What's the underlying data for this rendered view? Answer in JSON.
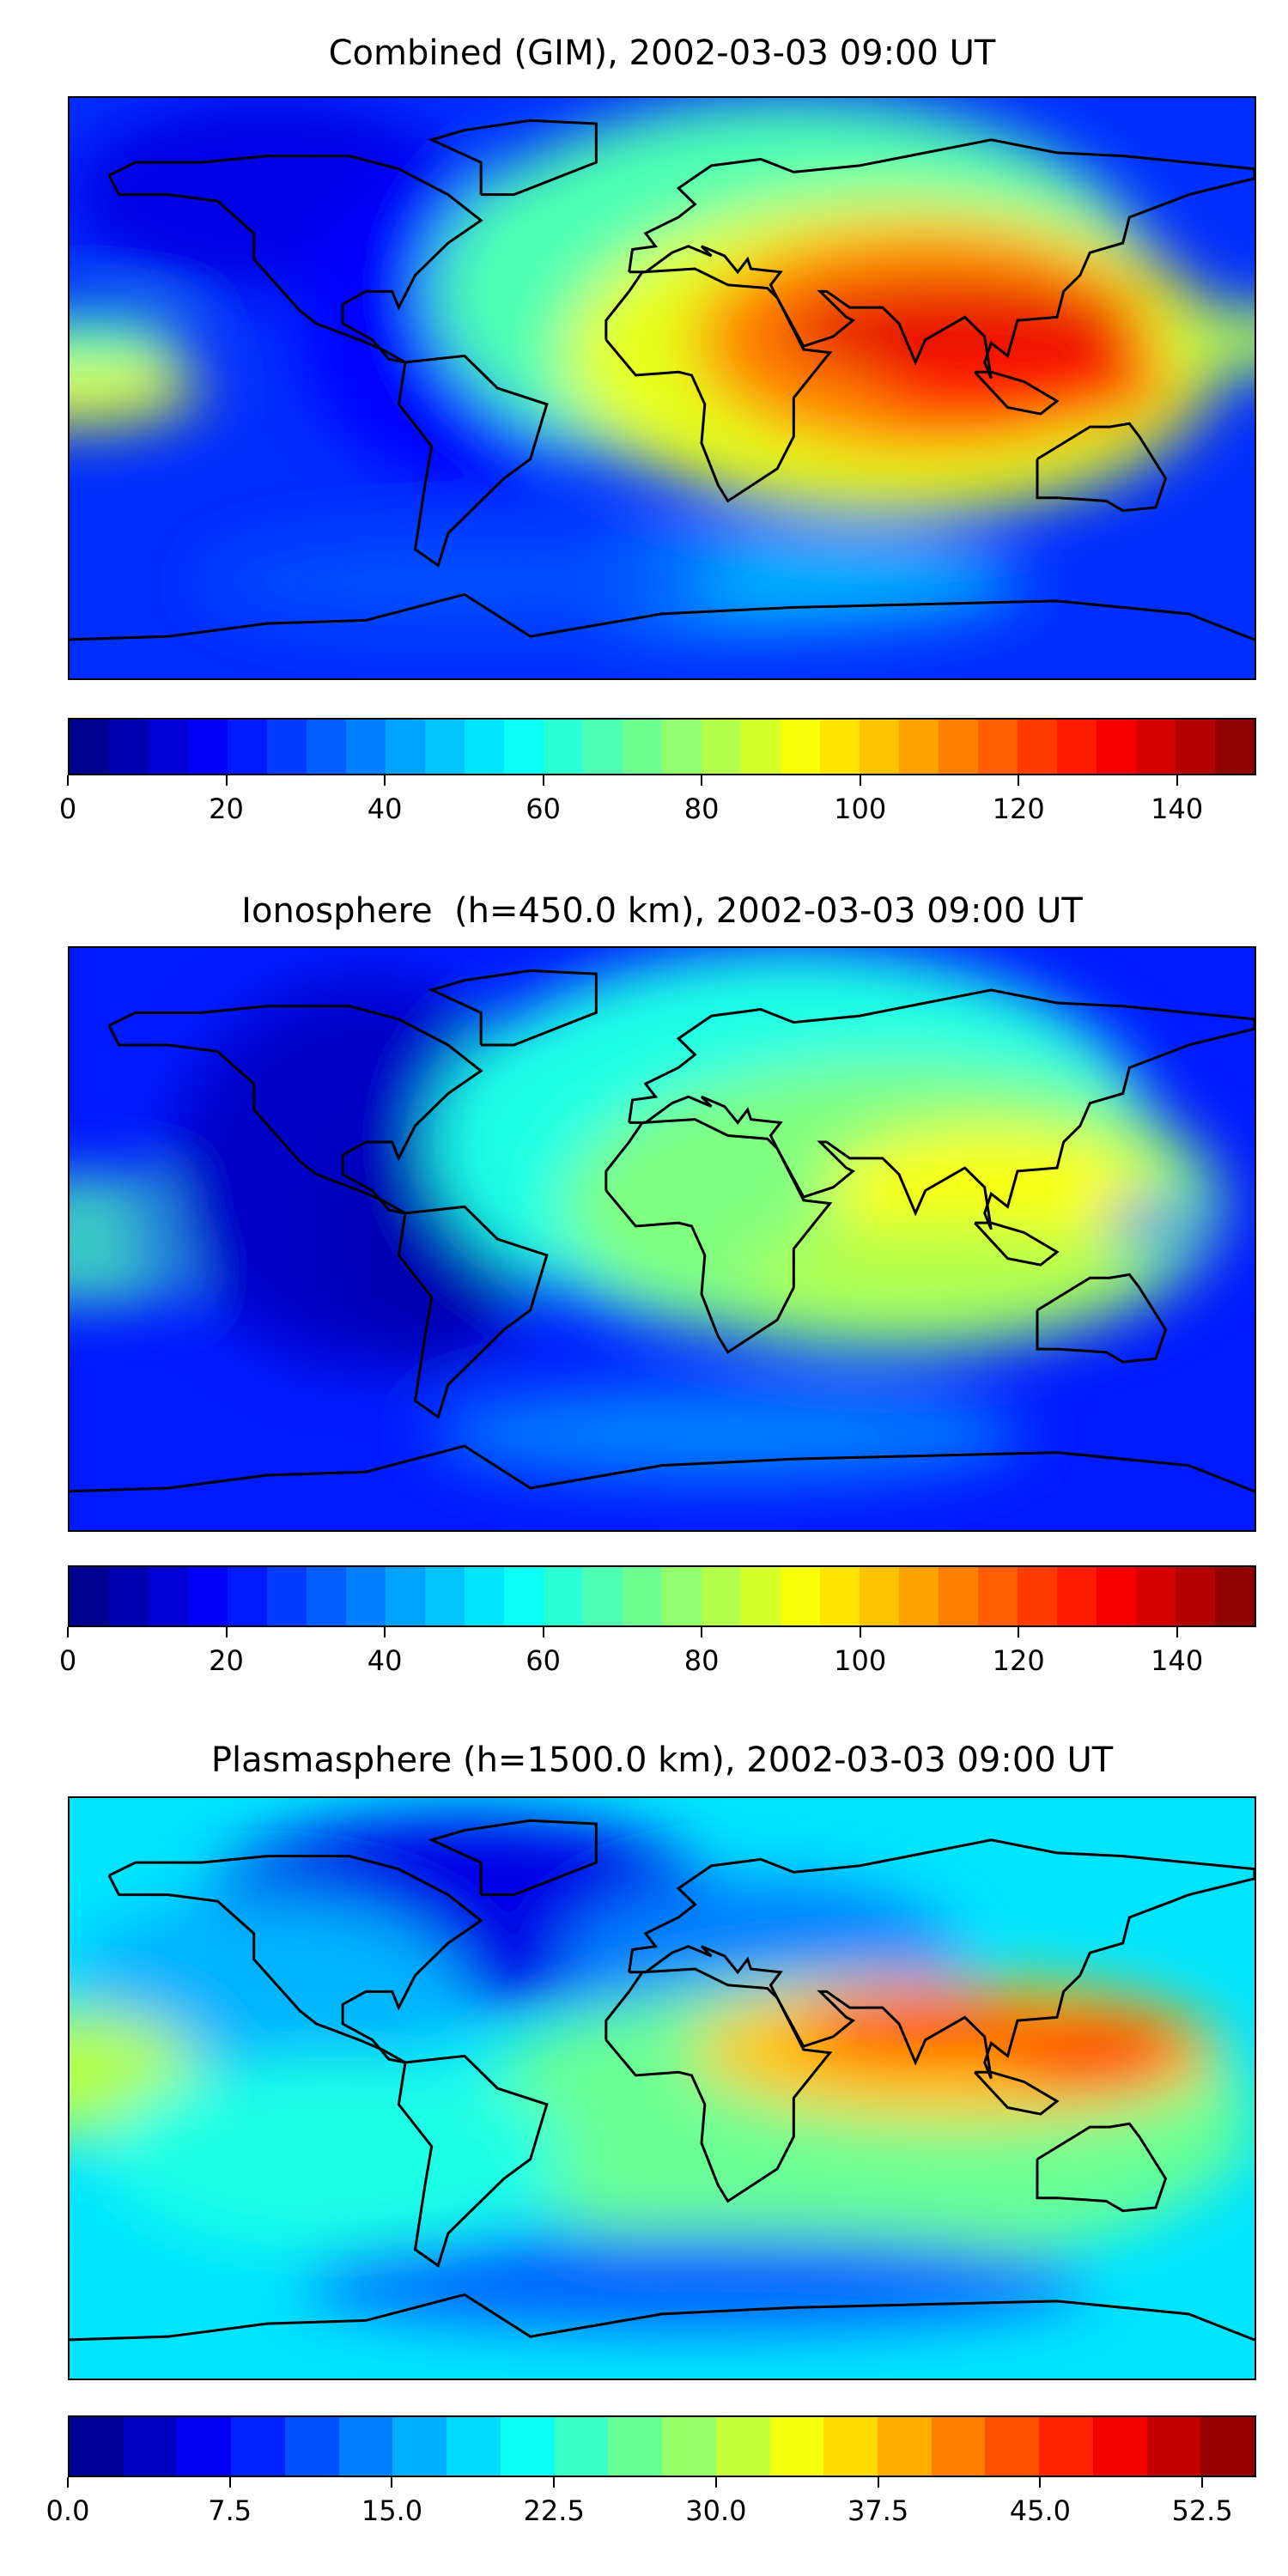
{
  "chart_data": [
    {
      "type": "heatmap",
      "title": "Combined (GIM), 2002-03-03 09:00 UT",
      "projection": "plate carree, world map with coastlines",
      "colormap": "jet",
      "colorbar": {
        "min": 0,
        "max": 150,
        "step": 5,
        "ticks": [
          "0",
          "20",
          "40",
          "60",
          "80",
          "100",
          "120",
          "140"
        ],
        "tick_values": [
          0,
          20,
          40,
          60,
          80,
          100,
          120,
          140
        ]
      },
      "features": "maximum (~140-150) over India / SE Asia; low values (~5-20) over Americas"
    },
    {
      "type": "heatmap",
      "title": "Ionosphere  (h=450.0 km), 2002-03-03 09:00 UT",
      "projection": "plate carree, world map with coastlines",
      "colormap": "jet",
      "colorbar": {
        "min": 0,
        "max": 150,
        "step": 5,
        "ticks": [
          "0",
          "20",
          "40",
          "60",
          "80",
          "100",
          "120",
          "140"
        ],
        "tick_values": [
          0,
          20,
          40,
          60,
          80,
          100,
          120,
          140
        ]
      },
      "features": "maximum (~100) over SE Asia; broad 70-90 over Africa/Eurasia; low over Americas"
    },
    {
      "type": "heatmap",
      "title": "Plasmasphere (h=1500.0 km), 2002-03-03 09:00 UT",
      "projection": "plate carree, world map with coastlines",
      "colormap": "jet",
      "colorbar": {
        "min": 0,
        "max": 55,
        "step": 2.5,
        "ticks": [
          "0.0",
          "7.5",
          "15.0",
          "22.5",
          "30.0",
          "37.5",
          "45.0",
          "52.5"
        ],
        "tick_values": [
          0,
          7.5,
          15,
          22.5,
          30,
          37.5,
          45,
          52.5
        ]
      },
      "features": "maximum (~45-50) over India / western Pacific; minimum over N Atlantic"
    }
  ]
}
